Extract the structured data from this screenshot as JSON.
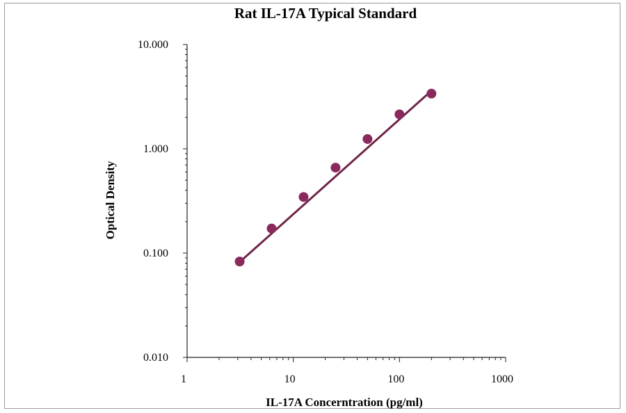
{
  "chart_data": {
    "type": "scatter",
    "title": "Rat IL-17A Typical Standard",
    "xlabel": "IL-17A Concerntration (pg/ml)",
    "ylabel": "Optical Density",
    "x_scale": "log",
    "y_scale": "log",
    "xlim": [
      1,
      1000
    ],
    "ylim": [
      0.01,
      10
    ],
    "x_ticks": [
      1,
      10,
      100,
      1000
    ],
    "x_tick_labels": [
      "1",
      "10",
      "100",
      "1000"
    ],
    "y_ticks": [
      0.01,
      0.1,
      1,
      10
    ],
    "y_tick_labels": [
      "0.010",
      "0.100",
      "1.000",
      "10.000"
    ],
    "grid": false,
    "colors": {
      "points": "#8a2a5c",
      "fit_line": "#6e2448"
    },
    "series": [
      {
        "x": [
          3.125,
          6.25,
          12.5,
          25,
          50,
          100,
          200
        ],
        "y": [
          0.083,
          0.172,
          0.345,
          0.66,
          1.24,
          2.14,
          3.38
        ]
      }
    ],
    "fit_line": {
      "x": [
        3.125,
        200
      ],
      "y": [
        0.082,
        3.6
      ]
    }
  }
}
